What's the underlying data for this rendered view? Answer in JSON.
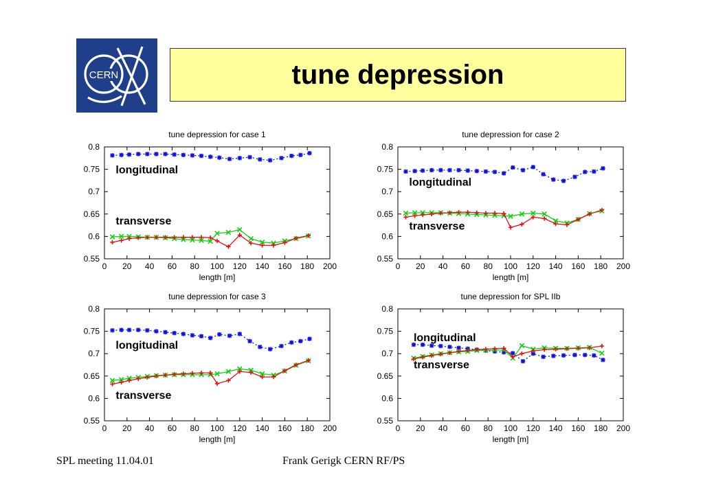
{
  "slide": {
    "title": "tune depression",
    "logo_text": "CERN",
    "footer_left": "SPL meeting 11.04.01",
    "footer_center": "Frank Gerigk CERN RF/PS"
  },
  "colors": {
    "longitudinal": "#1010e0",
    "transverse_x": "#10d010",
    "transverse_y": "#e01010",
    "title_bg": "#ffff9e",
    "logo_bg": "#1f3f8a"
  },
  "chart_data": [
    {
      "type": "line",
      "title": "tune depression for case 1",
      "xlabel": "length [m]",
      "ylabel": "",
      "xlim": [
        0,
        200
      ],
      "ylim": [
        0.55,
        0.8
      ],
      "xticks": [
        "0",
        "20",
        "40",
        "60",
        "80",
        "100",
        "120",
        "140",
        "160",
        "180",
        "200"
      ],
      "yticks": [
        "0.55",
        "0.6",
        "0.65",
        "0.7",
        "0.75",
        "0.8"
      ],
      "grid": false,
      "annotations": [
        {
          "text": "longitudinal",
          "x": 10,
          "y": 0.741
        },
        {
          "text": "transverse",
          "x": 10,
          "y": 0.627
        }
      ],
      "series": [
        {
          "x": [
            7,
            15,
            22,
            30,
            38,
            46,
            54,
            62,
            70,
            78,
            86,
            94,
            102,
            111,
            120,
            129,
            138,
            147,
            157,
            166,
            174,
            182
          ],
          "values": [
            0.781,
            0.782,
            0.783,
            0.784,
            0.784,
            0.784,
            0.784,
            0.783,
            0.782,
            0.781,
            0.78,
            0.778,
            0.776,
            0.773,
            0.775,
            0.777,
            0.772,
            0.77,
            0.775,
            0.78,
            0.782,
            0.786
          ],
          "marker": "*",
          "dash": "2,3",
          "color_key": "longitudinal"
        },
        {
          "x": [
            7,
            15,
            22,
            30,
            38,
            46,
            54,
            62,
            70,
            78,
            86,
            94,
            100,
            110,
            120,
            130,
            140,
            150,
            160,
            170,
            181
          ],
          "values": [
            0.599,
            0.6,
            0.6,
            0.599,
            0.598,
            0.598,
            0.597,
            0.595,
            0.593,
            0.592,
            0.591,
            0.589,
            0.607,
            0.609,
            0.615,
            0.595,
            0.587,
            0.585,
            0.59,
            0.595,
            0.601
          ],
          "marker": "x",
          "dash": "",
          "color_key": "transverse_x"
        },
        {
          "x": [
            7,
            15,
            22,
            30,
            38,
            46,
            54,
            62,
            70,
            78,
            86,
            94,
            100,
            110,
            120,
            130,
            140,
            150,
            160,
            170,
            181
          ],
          "values": [
            0.587,
            0.591,
            0.595,
            0.597,
            0.598,
            0.598,
            0.598,
            0.598,
            0.598,
            0.598,
            0.598,
            0.597,
            0.59,
            0.577,
            0.603,
            0.585,
            0.58,
            0.58,
            0.586,
            0.596,
            0.602
          ],
          "marker": "+",
          "dash": "",
          "color_key": "transverse_y"
        }
      ]
    },
    {
      "type": "line",
      "title": "tune depression for case 2",
      "xlabel": "length [m]",
      "ylabel": "",
      "xlim": [
        0,
        200
      ],
      "ylim": [
        0.55,
        0.8
      ],
      "xticks": [
        "0",
        "20",
        "40",
        "60",
        "80",
        "100",
        "120",
        "140",
        "160",
        "180",
        "200"
      ],
      "yticks": [
        "0.55",
        "0.6",
        "0.65",
        "0.7",
        "0.75",
        "0.8"
      ],
      "grid": false,
      "annotations": [
        {
          "text": "longitudinal",
          "x": 10,
          "y": 0.713
        },
        {
          "text": "transverse",
          "x": 10,
          "y": 0.615
        }
      ],
      "series": [
        {
          "x": [
            7,
            15,
            22,
            30,
            38,
            46,
            54,
            62,
            70,
            78,
            86,
            94,
            102,
            111,
            120,
            129,
            138,
            147,
            157,
            166,
            174,
            182
          ],
          "values": [
            0.745,
            0.746,
            0.747,
            0.748,
            0.748,
            0.748,
            0.748,
            0.747,
            0.746,
            0.745,
            0.744,
            0.741,
            0.754,
            0.748,
            0.755,
            0.739,
            0.727,
            0.724,
            0.733,
            0.744,
            0.745,
            0.752
          ],
          "marker": "*",
          "dash": "2,3",
          "color_key": "longitudinal"
        },
        {
          "x": [
            7,
            15,
            22,
            30,
            38,
            46,
            54,
            62,
            70,
            78,
            86,
            94,
            100,
            110,
            120,
            130,
            140,
            150,
            160,
            170,
            181
          ],
          "values": [
            0.652,
            0.653,
            0.653,
            0.653,
            0.653,
            0.652,
            0.651,
            0.65,
            0.649,
            0.648,
            0.647,
            0.646,
            0.645,
            0.65,
            0.652,
            0.65,
            0.635,
            0.63,
            0.638,
            0.651,
            0.657
          ],
          "marker": "x",
          "dash": "",
          "color_key": "transverse_x"
        },
        {
          "x": [
            7,
            15,
            22,
            30,
            38,
            46,
            54,
            62,
            70,
            78,
            86,
            94,
            100,
            110,
            120,
            130,
            140,
            150,
            160,
            170,
            181
          ],
          "values": [
            0.643,
            0.646,
            0.648,
            0.65,
            0.652,
            0.653,
            0.654,
            0.654,
            0.653,
            0.652,
            0.652,
            0.651,
            0.62,
            0.627,
            0.643,
            0.64,
            0.628,
            0.626,
            0.638,
            0.65,
            0.659
          ],
          "marker": "+",
          "dash": "",
          "color_key": "transverse_y"
        }
      ]
    },
    {
      "type": "line",
      "title": "tune depression for case 3",
      "xlabel": "length [m]",
      "ylabel": "",
      "xlim": [
        0,
        200
      ],
      "ylim": [
        0.55,
        0.8
      ],
      "xticks": [
        "0",
        "20",
        "40",
        "60",
        "80",
        "100",
        "120",
        "140",
        "160",
        "180",
        "200"
      ],
      "yticks": [
        "0.55",
        "0.6",
        "0.65",
        "0.7",
        "0.75",
        "0.8"
      ],
      "grid": false,
      "annotations": [
        {
          "text": "longitudinal",
          "x": 10,
          "y": 0.711
        },
        {
          "text": "transverse",
          "x": 10,
          "y": 0.599
        }
      ],
      "series": [
        {
          "x": [
            7,
            15,
            22,
            30,
            38,
            46,
            54,
            62,
            70,
            78,
            86,
            94,
            102,
            111,
            120,
            129,
            138,
            147,
            157,
            166,
            174,
            182
          ],
          "values": [
            0.752,
            0.753,
            0.753,
            0.753,
            0.752,
            0.75,
            0.748,
            0.746,
            0.744,
            0.741,
            0.739,
            0.735,
            0.743,
            0.74,
            0.744,
            0.728,
            0.715,
            0.71,
            0.717,
            0.725,
            0.728,
            0.733
          ],
          "marker": "*",
          "dash": "2,3",
          "color_key": "longitudinal"
        },
        {
          "x": [
            7,
            15,
            22,
            30,
            38,
            46,
            54,
            62,
            70,
            78,
            86,
            94,
            100,
            110,
            120,
            130,
            140,
            150,
            160,
            170,
            181
          ],
          "values": [
            0.64,
            0.642,
            0.645,
            0.647,
            0.649,
            0.651,
            0.652,
            0.653,
            0.653,
            0.653,
            0.653,
            0.653,
            0.655,
            0.66,
            0.666,
            0.663,
            0.655,
            0.652,
            0.661,
            0.674,
            0.684
          ],
          "marker": "x",
          "dash": "",
          "color_key": "transverse_x"
        },
        {
          "x": [
            7,
            15,
            22,
            30,
            38,
            46,
            54,
            62,
            70,
            78,
            86,
            94,
            100,
            110,
            120,
            130,
            140,
            150,
            160,
            170,
            181
          ],
          "values": [
            0.632,
            0.636,
            0.64,
            0.644,
            0.647,
            0.65,
            0.652,
            0.654,
            0.655,
            0.656,
            0.657,
            0.657,
            0.633,
            0.64,
            0.66,
            0.658,
            0.648,
            0.648,
            0.662,
            0.675,
            0.685
          ],
          "marker": "+",
          "dash": "",
          "color_key": "transverse_y"
        }
      ]
    },
    {
      "type": "line",
      "title": "tune depression for SPL IIb",
      "xlabel": "length [m]",
      "ylabel": "",
      "xlim": [
        0,
        200
      ],
      "ylim": [
        0.55,
        0.8
      ],
      "xticks": [
        "0",
        "20",
        "40",
        "60",
        "80",
        "100",
        "120",
        "140",
        "160",
        "180",
        "200"
      ],
      "yticks": [
        "0.55",
        "0.6",
        "0.65",
        "0.7",
        "0.75",
        "0.8"
      ],
      "grid": false,
      "annotations": [
        {
          "text": "longitudinal",
          "x": 14,
          "y": 0.728
        },
        {
          "text": "transverse",
          "x": 14,
          "y": 0.667
        }
      ],
      "series": [
        {
          "x": [
            14,
            22,
            30,
            38,
            46,
            54,
            62,
            70,
            78,
            86,
            94,
            102,
            111,
            120,
            129,
            138,
            147,
            157,
            166,
            174,
            182
          ],
          "values": [
            0.72,
            0.72,
            0.718,
            0.717,
            0.715,
            0.713,
            0.711,
            0.709,
            0.707,
            0.705,
            0.703,
            0.701,
            0.683,
            0.7,
            0.693,
            0.695,
            0.696,
            0.697,
            0.697,
            0.696,
            0.686
          ],
          "marker": "*",
          "dash": "2,3",
          "color_key": "longitudinal"
        },
        {
          "x": [
            14,
            22,
            30,
            38,
            46,
            54,
            62,
            70,
            78,
            86,
            94,
            102,
            110,
            120,
            130,
            140,
            150,
            160,
            170,
            181
          ],
          "values": [
            0.69,
            0.694,
            0.697,
            0.7,
            0.702,
            0.704,
            0.705,
            0.707,
            0.707,
            0.708,
            0.708,
            0.69,
            0.718,
            0.71,
            0.713,
            0.712,
            0.712,
            0.713,
            0.714,
            0.701
          ],
          "marker": "x",
          "dash": "",
          "color_key": "transverse_x"
        },
        {
          "x": [
            14,
            22,
            30,
            38,
            46,
            54,
            62,
            70,
            78,
            86,
            94,
            102,
            110,
            120,
            130,
            140,
            150,
            160,
            170,
            181
          ],
          "values": [
            0.688,
            0.692,
            0.696,
            0.699,
            0.702,
            0.705,
            0.707,
            0.709,
            0.71,
            0.711,
            0.712,
            0.693,
            0.7,
            0.706,
            0.709,
            0.71,
            0.711,
            0.712,
            0.713,
            0.717
          ],
          "marker": "+",
          "dash": "",
          "color_key": "transverse_y"
        }
      ]
    }
  ]
}
